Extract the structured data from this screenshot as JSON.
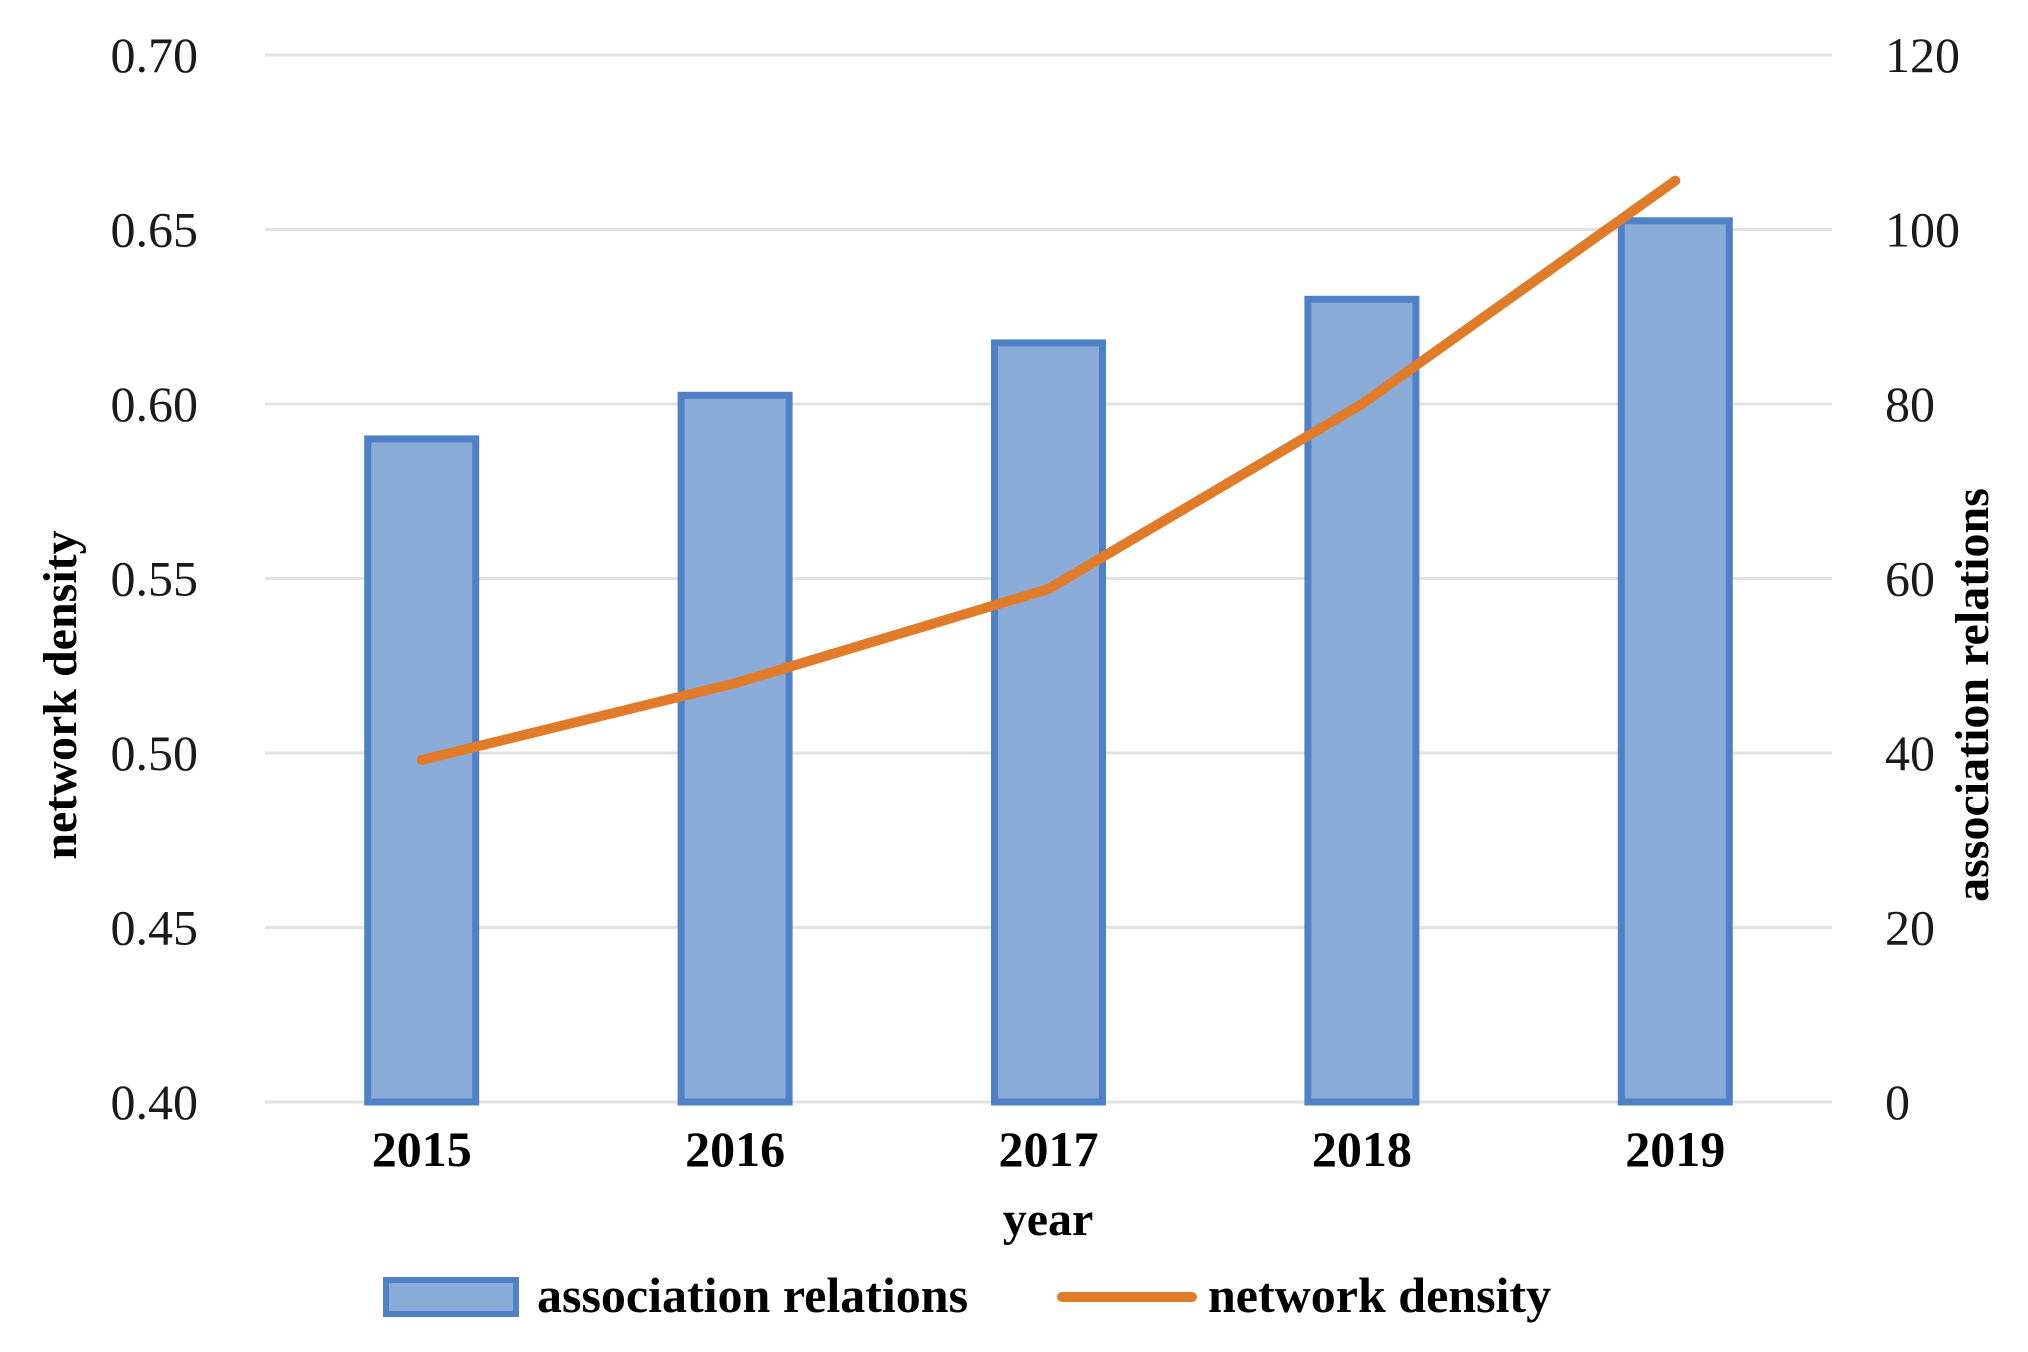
{
  "chart_data": {
    "type": "bar",
    "categories": [
      "2015",
      "2016",
      "2017",
      "2018",
      "2019"
    ],
    "series": [
      {
        "name": "association relations",
        "type": "bar",
        "axis": "right",
        "values": [
          76,
          81,
          87,
          92,
          101
        ],
        "color": "#8aabd8",
        "border_color": "#4f81c8"
      },
      {
        "name": "network density",
        "type": "line",
        "axis": "left",
        "values": [
          0.498,
          0.52,
          0.547,
          0.6,
          0.664
        ],
        "color": "#e07b2a"
      }
    ],
    "xlabel": "year",
    "ylabel_left": "network density",
    "ylabel_right": "association relations",
    "ylim_left": [
      0.4,
      0.7
    ],
    "ylim_right": [
      0,
      120
    ],
    "yticks_left": [
      "0.40",
      "0.45",
      "0.50",
      "0.55",
      "0.60",
      "0.65",
      "0.70"
    ],
    "yticks_right": [
      "0",
      "20",
      "40",
      "60",
      "80",
      "100",
      "120"
    ],
    "grid": true,
    "legend_position": "bottom",
    "grid_color": "#e2e2e2"
  }
}
